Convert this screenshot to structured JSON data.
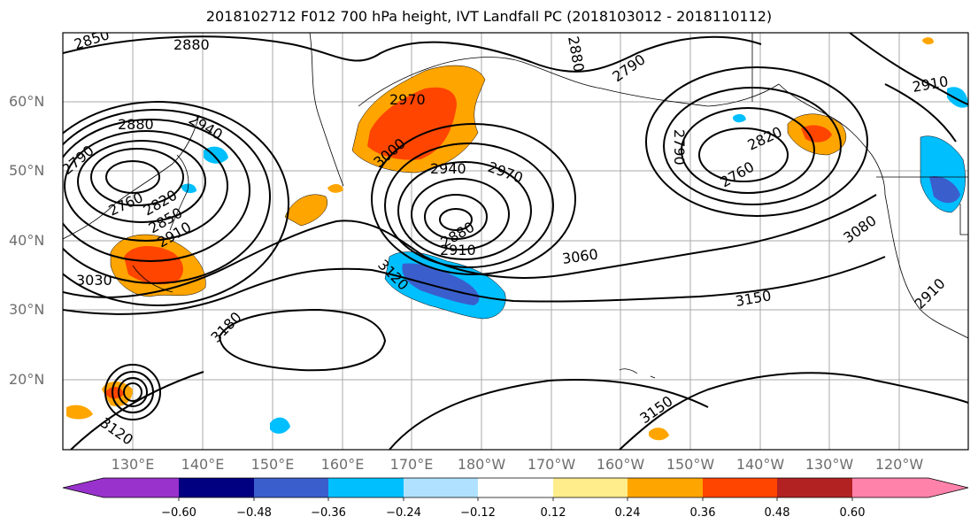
{
  "title": "2018102712 F012 700 hPa height, IVT Landfall PC (2018103012 - 2018110112)",
  "lat_labels": [
    "60°N",
    "50°N",
    "40°N",
    "30°N",
    "20°N"
  ],
  "lon_labels": [
    "130°E",
    "140°E",
    "150°E",
    "160°E",
    "170°E",
    "180°W",
    "170°W",
    "160°W",
    "150°W",
    "140°W",
    "130°W",
    "120°W"
  ],
  "contour_labels": [
    "2850",
    "2880",
    "2790",
    "2880",
    "2940",
    "2790",
    "2760",
    "2820",
    "2850",
    "2910",
    "3030",
    "2970",
    "3000",
    "2940",
    "2970",
    "2880",
    "2910",
    "3120",
    "3060",
    "3180",
    "3150",
    "3150",
    "3120",
    "2790",
    "2820",
    "2760",
    "3080",
    "2910",
    "2910",
    "2880"
  ],
  "colorbar": {
    "colors": [
      "#9932cc",
      "#000080",
      "#3a5fcd",
      "#00bfff",
      "#b0e2ff",
      "#ffffff",
      "#ffec8b",
      "#ffa500",
      "#ff4500",
      "#b22222",
      "#ff82ab"
    ],
    "tick_labels": [
      "−0.60",
      "−0.48",
      "−0.36",
      "−0.24",
      "−0.12",
      "0.12",
      "0.24",
      "0.36",
      "0.48",
      "0.60"
    ]
  }
}
